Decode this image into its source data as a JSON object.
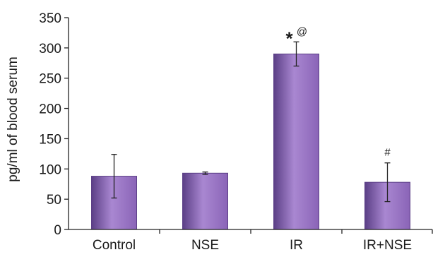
{
  "chart_data": {
    "type": "bar",
    "title": "",
    "xlabel": "",
    "ylabel": "pg/ml of blood serum",
    "ylim": [
      0,
      350
    ],
    "yticks": [
      0,
      50,
      100,
      150,
      200,
      250,
      300,
      350
    ],
    "categories": [
      "Control",
      "NSE",
      "IR",
      "IR+NSE"
    ],
    "values": [
      88,
      93,
      290,
      78
    ],
    "error": [
      36,
      2,
      20,
      32
    ],
    "annotations": [
      {
        "category": "IR",
        "marks": [
          {
            "text": "*",
            "style": "star"
          },
          {
            "text": "@",
            "style": "small"
          }
        ]
      },
      {
        "category": "IR+NSE",
        "marks": [
          {
            "text": "#",
            "style": "small"
          }
        ]
      }
    ],
    "grid": false,
    "legend": "none",
    "colors": {
      "bar_fill": "#8a64b7",
      "bar_dark": "#5b3f86",
      "bar_light": "#a987d1",
      "axis": "#222222"
    }
  }
}
